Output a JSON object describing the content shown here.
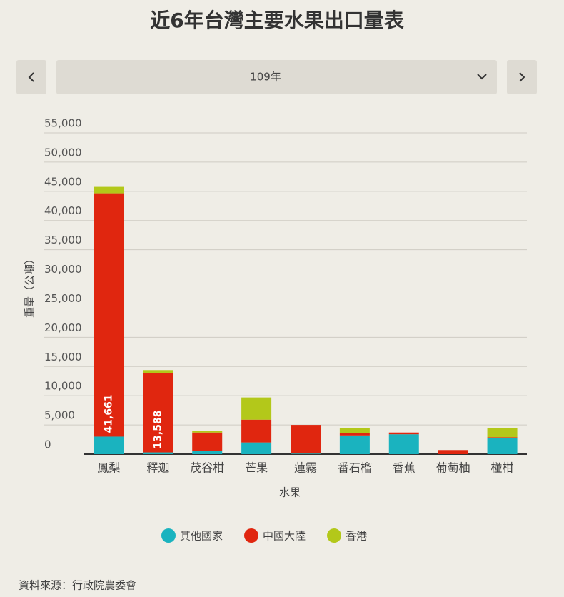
{
  "ui": {
    "selected_year": "109年"
  },
  "source": "資料來源：行政院農委會",
  "chart_data": {
    "type": "stacked_bar",
    "title": "近6年台灣主要水果出口量表",
    "y_label": "重量（公噸）",
    "x_label": "水果",
    "categories": [
      "鳳梨",
      "釋迦",
      "茂谷柑",
      "芒果",
      "蓮霧",
      "番石榴",
      "香蕉",
      "葡萄柚",
      "椪柑"
    ],
    "series": [
      {
        "name": "其他國家",
        "color": "#1ab3bf",
        "values": [
          3000,
          300,
          500,
          2000,
          100,
          3200,
          3400,
          0,
          2800
        ]
      },
      {
        "name": "中國大陸",
        "color": "#e0260f",
        "values": [
          41661,
          13588,
          3200,
          3900,
          4900,
          400,
          300,
          700,
          100
        ],
        "value_labels": [
          "41,661",
          "13,588",
          null,
          null,
          null,
          null,
          null,
          null,
          null
        ]
      },
      {
        "name": "香港",
        "color": "#b3c81a",
        "values": [
          1100,
          500,
          250,
          3800,
          0,
          850,
          0,
          0,
          1600
        ]
      }
    ],
    "ylim": [
      0,
      55000
    ],
    "yticks": [
      0,
      {
        "value": 5000,
        "label": "5,000"
      },
      {
        "value": 10000,
        "label": "10,000"
      },
      {
        "value": 15000,
        "label": "15,000"
      },
      {
        "value": 20000,
        "label": "20,000"
      },
      {
        "value": 25000,
        "label": "25,000"
      },
      {
        "value": 30000,
        "label": "30,000"
      },
      {
        "value": 35000,
        "label": "35,000"
      },
      {
        "value": 40000,
        "label": "40,000"
      },
      {
        "value": 45000,
        "label": "45,000"
      },
      {
        "value": 50000,
        "label": "50,000"
      },
      {
        "value": 55000,
        "label": "55,000"
      }
    ],
    "grid": true
  }
}
